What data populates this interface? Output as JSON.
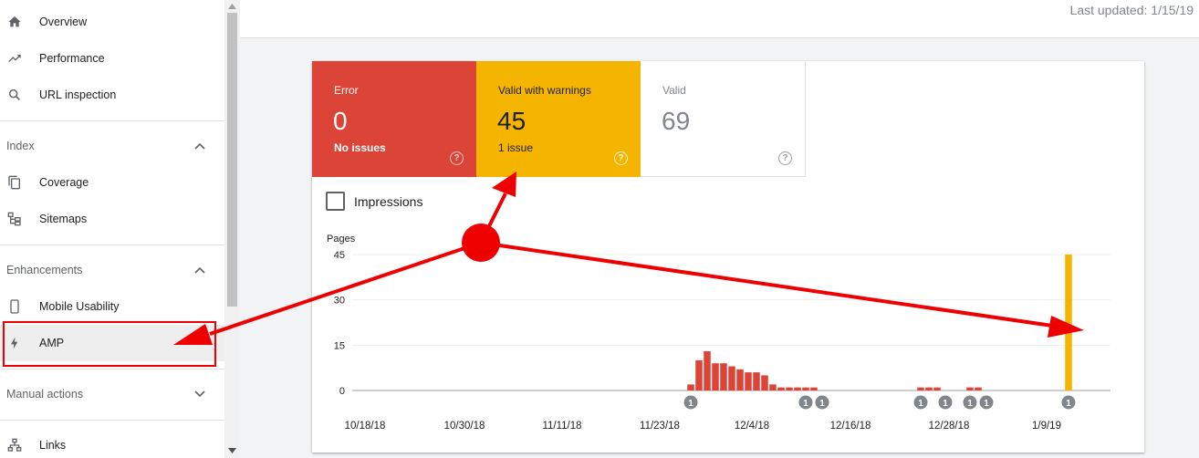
{
  "sidebar": {
    "items": [
      {
        "label": "Overview",
        "icon": "home-icon"
      },
      {
        "label": "Performance",
        "icon": "trending-up-icon"
      },
      {
        "label": "URL inspection",
        "icon": "search-icon"
      }
    ],
    "sections": [
      {
        "title": "Index",
        "expanded": true,
        "items": [
          {
            "label": "Coverage",
            "icon": "coverage-icon"
          },
          {
            "label": "Sitemaps",
            "icon": "sitemap-icon"
          }
        ]
      },
      {
        "title": "Enhancements",
        "expanded": true,
        "items": [
          {
            "label": "Mobile Usability",
            "icon": "phone-icon"
          },
          {
            "label": "AMP",
            "icon": "bolt-icon",
            "active": true
          }
        ]
      },
      {
        "title": "Manual actions",
        "expanded": false,
        "items": []
      }
    ],
    "bottom_item": {
      "label": "Links",
      "icon": "links-icon"
    }
  },
  "header": {
    "last_updated": "Last updated: 1/15/19"
  },
  "tiles": {
    "error": {
      "label": "Error",
      "value": "0",
      "sub": "No issues",
      "color": "#db4437"
    },
    "warnings": {
      "label": "Valid with warnings",
      "value": "45",
      "sub": "1 issue",
      "color": "#f4b400"
    },
    "valid": {
      "label": "Valid",
      "value": "69",
      "sub": ""
    }
  },
  "impressions": {
    "label": "Impressions",
    "checked": false
  },
  "chart_data": {
    "type": "bar",
    "ylabel": "Pages",
    "ylim": [
      0,
      45
    ],
    "yticks": [
      "45",
      "30",
      "15",
      "0"
    ],
    "xtick_labels": [
      "10/18/18",
      "10/30/18",
      "11/11/18",
      "11/23/18",
      "12/4/18",
      "12/16/18",
      "12/28/18",
      "1/9/19"
    ],
    "x_start": "2018-10-18",
    "series": [
      {
        "color": "#db4437",
        "points": [
          {
            "date": "2018-11-28",
            "value": 2
          },
          {
            "date": "2018-11-29",
            "value": 10
          },
          {
            "date": "2018-11-30",
            "value": 13
          },
          {
            "date": "2018-12-01",
            "value": 9
          },
          {
            "date": "2018-12-02",
            "value": 9
          },
          {
            "date": "2018-12-03",
            "value": 8
          },
          {
            "date": "2018-12-04",
            "value": 7
          },
          {
            "date": "2018-12-05",
            "value": 6
          },
          {
            "date": "2018-12-06",
            "value": 6
          },
          {
            "date": "2018-12-07",
            "value": 5
          },
          {
            "date": "2018-12-08",
            "value": 2
          },
          {
            "date": "2018-12-09",
            "value": 1
          },
          {
            "date": "2018-12-10",
            "value": 1
          },
          {
            "date": "2018-12-11",
            "value": 1
          },
          {
            "date": "2018-12-12",
            "value": 1
          },
          {
            "date": "2018-12-13",
            "value": 1
          },
          {
            "date": "2018-12-26",
            "value": 1
          },
          {
            "date": "2018-12-27",
            "value": 1
          },
          {
            "date": "2018-12-28",
            "value": 1
          },
          {
            "date": "2019-01-01",
            "value": 1
          },
          {
            "date": "2019-01-02",
            "value": 1
          }
        ]
      },
      {
        "color": "#f4b400",
        "points": [
          {
            "date": "2019-01-13",
            "value": 45
          }
        ]
      }
    ],
    "annotations": [
      {
        "date": "2018-11-28",
        "label": "1"
      },
      {
        "date": "2018-12-12",
        "label": "1"
      },
      {
        "date": "2018-12-14",
        "label": "1"
      },
      {
        "date": "2018-12-26",
        "label": "1"
      },
      {
        "date": "2018-12-29",
        "label": "1"
      },
      {
        "date": "2019-01-01",
        "label": "1"
      },
      {
        "date": "2019-01-03",
        "label": "1"
      },
      {
        "date": "2019-01-13",
        "label": "1"
      }
    ]
  },
  "overlay": {
    "arrow_color": "#ee0000"
  }
}
